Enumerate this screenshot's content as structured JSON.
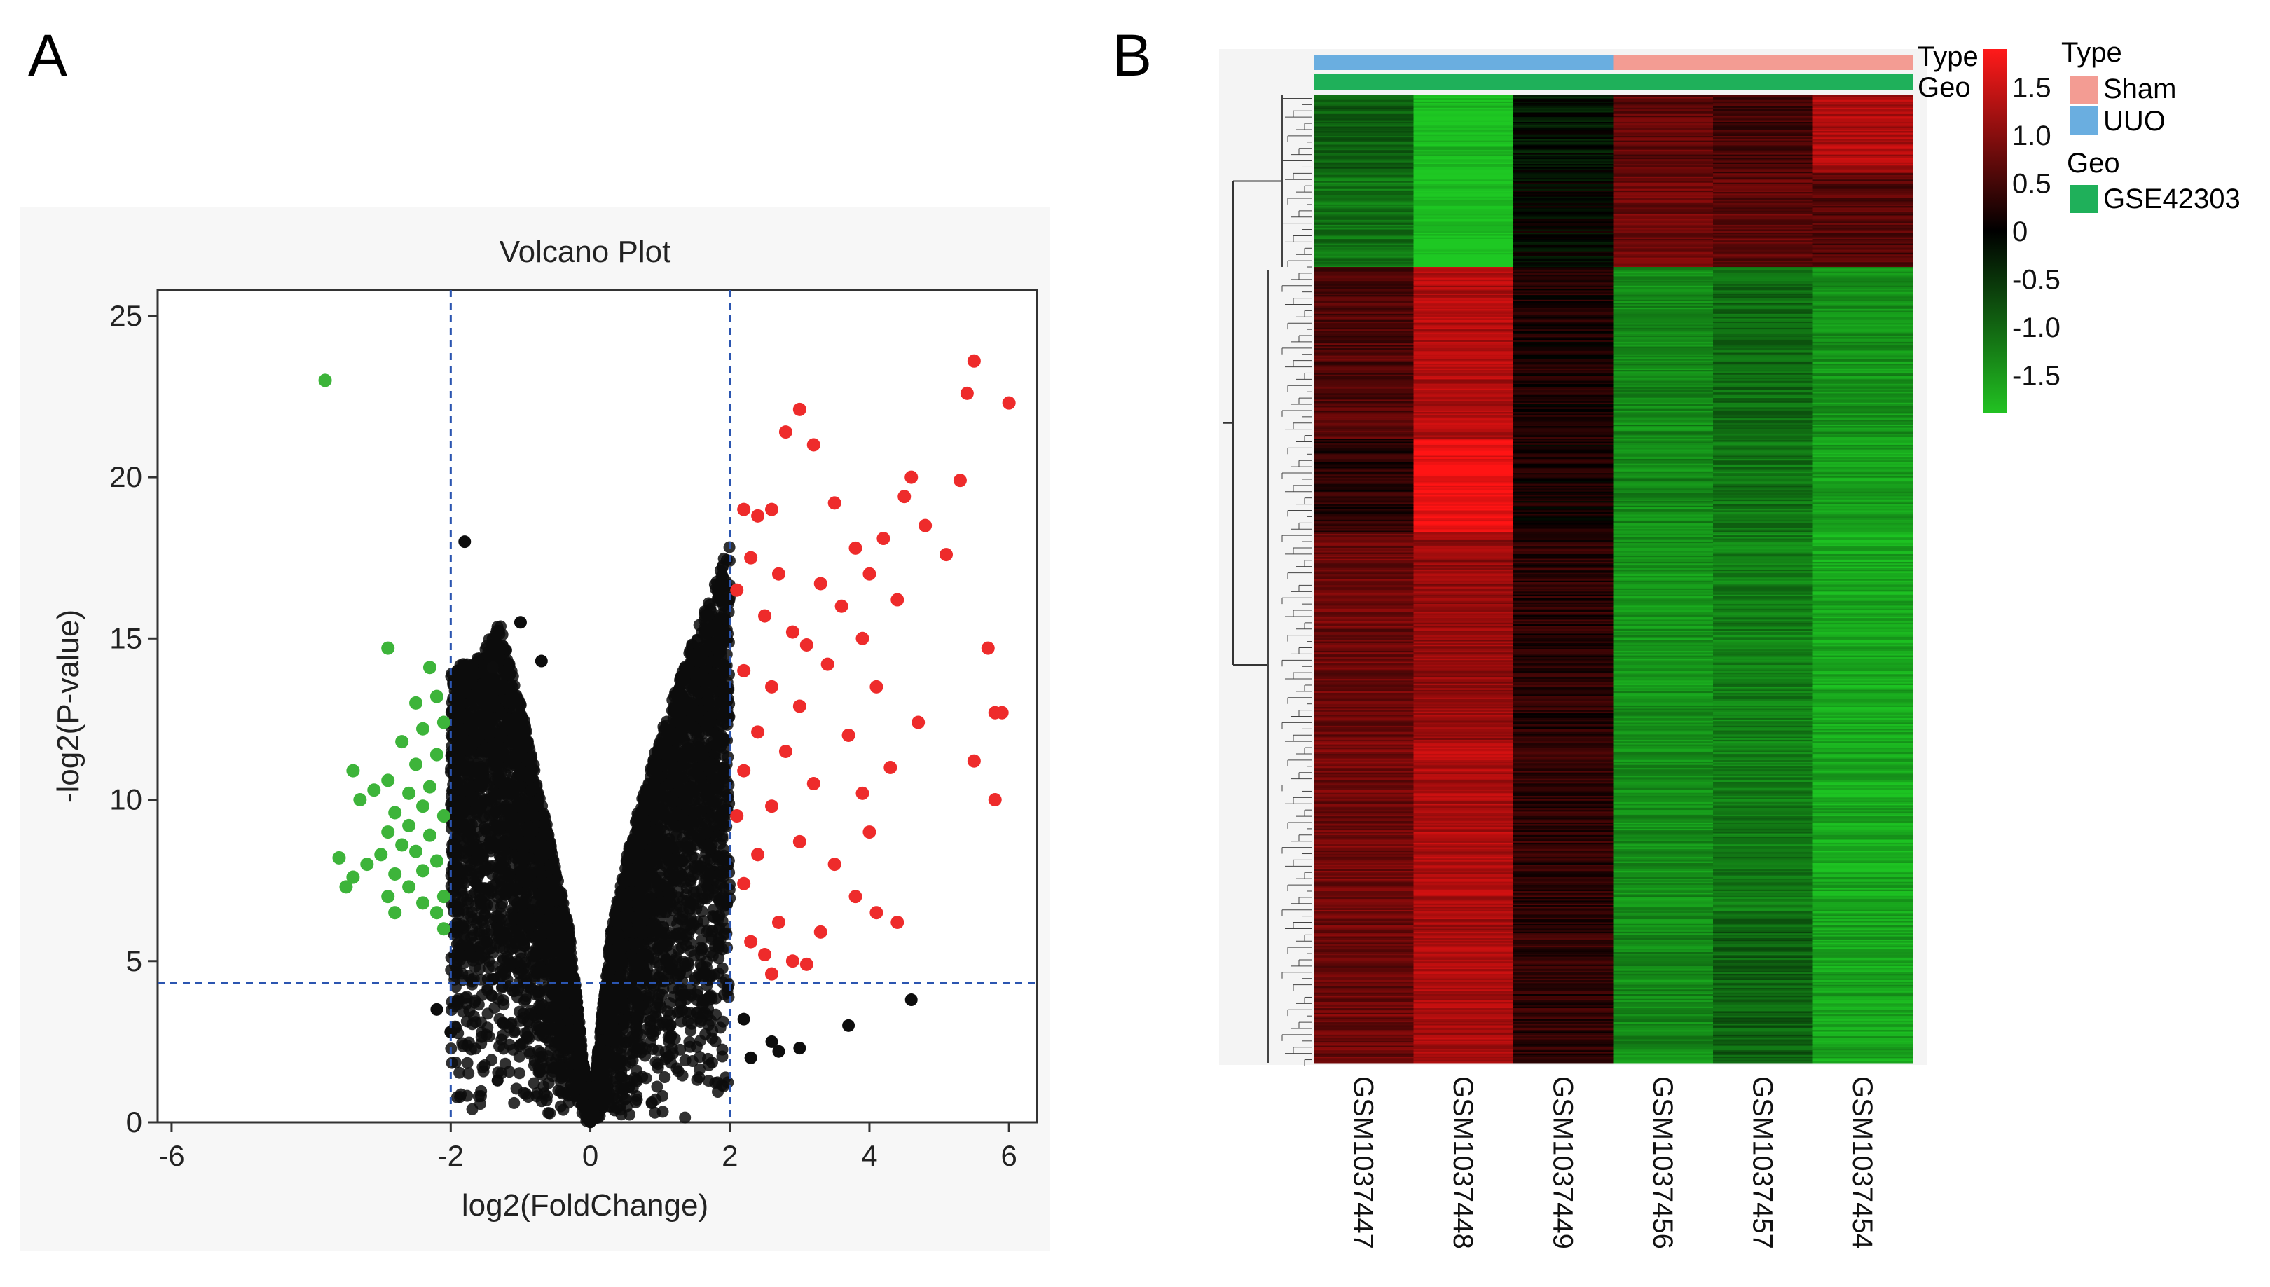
{
  "panel_a_label": "A",
  "panel_b_label": "B",
  "chart_data": [
    {
      "type": "scatter",
      "title": "Volcano Plot",
      "xlabel": "log2(FoldChange)",
      "ylabel": "-log2(P-value)",
      "xlim": [
        -6.2,
        6.4
      ],
      "ylim": [
        0,
        25.8
      ],
      "xticks": [
        "-6",
        "-2",
        "0",
        "2",
        "4",
        "6"
      ],
      "xtick_values": [
        -6,
        -2,
        0,
        2,
        4,
        6
      ],
      "yticks": [
        "0",
        "5",
        "10",
        "15",
        "20",
        "25"
      ],
      "ytick_values": [
        0,
        5,
        10,
        15,
        20,
        25
      ],
      "thresholds": {
        "log2fc": [
          -2,
          2
        ],
        "neg_log2_p": 4.32
      },
      "colors": {
        "up": "#ee2b2b",
        "down": "#3db43a",
        "ns": "#0d0d0d",
        "threshold": "#2b55b0"
      },
      "series": [
        {
          "group": "up",
          "points": [
            [
              5.5,
              23.6
            ],
            [
              6.0,
              22.3
            ],
            [
              5.4,
              22.6
            ],
            [
              3.0,
              22.1
            ],
            [
              2.8,
              21.4
            ],
            [
              3.2,
              21.0
            ],
            [
              4.6,
              20.0
            ],
            [
              5.3,
              19.9
            ],
            [
              4.5,
              19.4
            ],
            [
              2.2,
              19.0
            ],
            [
              2.4,
              18.8
            ],
            [
              2.6,
              19.0
            ],
            [
              3.5,
              19.2
            ],
            [
              4.2,
              18.1
            ],
            [
              4.8,
              18.5
            ],
            [
              5.1,
              17.6
            ],
            [
              3.8,
              17.8
            ],
            [
              4.0,
              17.0
            ],
            [
              2.3,
              17.5
            ],
            [
              2.7,
              17.0
            ],
            [
              3.3,
              16.7
            ],
            [
              4.4,
              16.2
            ],
            [
              3.6,
              16.0
            ],
            [
              2.1,
              16.5
            ],
            [
              2.5,
              15.7
            ],
            [
              2.9,
              15.2
            ],
            [
              3.1,
              14.8
            ],
            [
              3.9,
              15.0
            ],
            [
              5.7,
              14.7
            ],
            [
              3.4,
              14.2
            ],
            [
              2.2,
              14.0
            ],
            [
              4.1,
              13.5
            ],
            [
              2.6,
              13.5
            ],
            [
              3.0,
              12.9
            ],
            [
              5.8,
              12.7
            ],
            [
              5.9,
              12.7
            ],
            [
              4.7,
              12.4
            ],
            [
              2.4,
              12.1
            ],
            [
              3.7,
              12.0
            ],
            [
              2.8,
              11.5
            ],
            [
              5.5,
              11.2
            ],
            [
              4.3,
              11.0
            ],
            [
              2.2,
              10.9
            ],
            [
              3.2,
              10.5
            ],
            [
              3.9,
              10.2
            ],
            [
              5.8,
              10.0
            ],
            [
              2.6,
              9.8
            ],
            [
              2.1,
              9.5
            ],
            [
              4.0,
              9.0
            ],
            [
              3.0,
              8.7
            ],
            [
              2.4,
              8.3
            ],
            [
              3.5,
              8.0
            ],
            [
              2.2,
              7.4
            ],
            [
              3.8,
              7.0
            ],
            [
              4.1,
              6.5
            ],
            [
              4.4,
              6.2
            ],
            [
              2.7,
              6.2
            ],
            [
              3.3,
              5.9
            ],
            [
              2.3,
              5.6
            ],
            [
              2.9,
              5.0
            ],
            [
              3.1,
              4.9
            ],
            [
              2.6,
              4.6
            ],
            [
              2.5,
              5.2
            ]
          ]
        },
        {
          "group": "down",
          "points": [
            [
              -3.8,
              23.0
            ],
            [
              -2.9,
              14.7
            ],
            [
              -2.3,
              14.1
            ],
            [
              -2.2,
              13.2
            ],
            [
              -2.5,
              13.0
            ],
            [
              -2.1,
              12.4
            ],
            [
              -2.4,
              12.2
            ],
            [
              -2.7,
              11.8
            ],
            [
              -2.2,
              11.4
            ],
            [
              -2.5,
              11.1
            ],
            [
              -3.4,
              10.9
            ],
            [
              -2.9,
              10.6
            ],
            [
              -2.3,
              10.4
            ],
            [
              -3.1,
              10.3
            ],
            [
              -2.6,
              10.2
            ],
            [
              -2.4,
              9.8
            ],
            [
              -3.3,
              10.0
            ],
            [
              -2.8,
              9.6
            ],
            [
              -2.1,
              9.5
            ],
            [
              -2.6,
              9.2
            ],
            [
              -2.9,
              9.0
            ],
            [
              -2.3,
              8.9
            ],
            [
              -2.7,
              8.6
            ],
            [
              -3.0,
              8.3
            ],
            [
              -2.5,
              8.4
            ],
            [
              -2.2,
              8.1
            ],
            [
              -3.6,
              8.2
            ],
            [
              -3.2,
              8.0
            ],
            [
              -2.4,
              7.8
            ],
            [
              -3.4,
              7.6
            ],
            [
              -2.8,
              7.7
            ],
            [
              -2.6,
              7.3
            ],
            [
              -3.5,
              7.3
            ],
            [
              -2.1,
              7.0
            ],
            [
              -2.9,
              7.0
            ],
            [
              -2.4,
              6.8
            ],
            [
              -2.2,
              6.5
            ],
            [
              -2.8,
              6.5
            ],
            [
              -2.1,
              6.0
            ]
          ]
        },
        {
          "group": "ns",
          "envelope": [
            [
              -2.0,
              14.0
            ],
            [
              -1.6,
              14.5
            ],
            [
              -1.3,
              15.5
            ],
            [
              -1.0,
              13.0
            ],
            [
              -0.6,
              9.0
            ],
            [
              -0.3,
              6.0
            ],
            [
              0.0,
              0.0
            ],
            [
              0.3,
              6.0
            ],
            [
              0.6,
              9.0
            ],
            [
              1.0,
              12.0
            ],
            [
              1.4,
              14.5
            ],
            [
              1.8,
              16.8
            ],
            [
              2.0,
              18.0
            ]
          ],
          "count_drawn": 5200
        }
      ]
    },
    {
      "type": "heatmap",
      "columns": [
        "GSM1037447",
        "GSM1037448",
        "GSM1037449",
        "GSM1037456",
        "GSM1037457",
        "GSM1037454"
      ],
      "annotation_rows": [
        {
          "name": "Type",
          "values": [
            "UUO",
            "UUO",
            "UUO",
            "Sham",
            "Sham",
            "Sham"
          ]
        },
        {
          "name": "Geo",
          "values": [
            "GSE42303",
            "GSE42303",
            "GSE42303",
            "GSE42303",
            "GSE42303",
            "GSE42303"
          ]
        }
      ],
      "row_blocks": [
        {
          "rows": 50,
          "values": [
            -0.9,
            -1.8,
            -0.2,
            0.7,
            0.5,
            1.3
          ]
        },
        {
          "rows": 60,
          "values": [
            -1.1,
            -1.9,
            -0.05,
            0.8,
            0.7,
            0.6
          ]
        },
        {
          "rows": 110,
          "values": [
            0.6,
            1.3,
            0.2,
            -1.3,
            -1.0,
            -1.4
          ]
        },
        {
          "rows": 60,
          "values": [
            0.3,
            1.8,
            0.15,
            -1.3,
            -1.1,
            -1.5
          ]
        },
        {
          "rows": 135,
          "values": [
            0.8,
            1.1,
            0.3,
            -1.4,
            -1.2,
            -1.6
          ]
        },
        {
          "rows": 110,
          "values": [
            0.85,
            1.3,
            0.35,
            -1.35,
            -1.15,
            -1.6
          ]
        },
        {
          "rows": 95,
          "values": [
            0.8,
            1.25,
            0.35,
            -1.3,
            -0.9,
            -1.55
          ]
        }
      ],
      "colorbar": {
        "ticks": [
          "1.5",
          "1.0",
          "0.5",
          "0",
          "-0.5",
          "-1.0",
          "-1.5"
        ],
        "tick_values": [
          1.5,
          1.0,
          0.5,
          0,
          -0.5,
          -1.0,
          -1.5
        ],
        "range": [
          -1.9,
          1.9
        ]
      },
      "legend": [
        {
          "title": "Type",
          "entries": [
            {
              "label": "Sham",
              "color": "#f39c93"
            },
            {
              "label": "UUO",
              "color": "#6aaee0"
            }
          ]
        },
        {
          "title": "Geo",
          "entries": [
            {
              "label": "GSE42303",
              "color": "#1fb05a"
            }
          ]
        }
      ]
    }
  ]
}
